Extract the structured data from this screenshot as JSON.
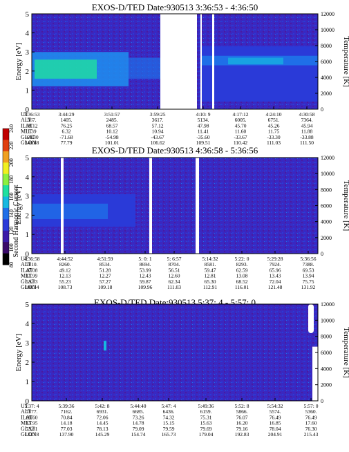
{
  "colorbar": {
    "label": "Second Harmonic Current",
    "ticks": [
      "80",
      "100",
      "120",
      "140",
      "160",
      "180",
      "200",
      "220",
      "240"
    ],
    "colors": [
      "#000000",
      "#3a0a6a",
      "#3b1aa8",
      "#2a3ad8",
      "#1f6fe8",
      "#16b8e0",
      "#20e0a0",
      "#8cf040",
      "#f0f020",
      "#f0a020",
      "#e04010",
      "#c00000"
    ]
  },
  "panels": [
    {
      "title": "EXOS-D/TED   Date:930513  3:36:53 - 4:36:50",
      "ylabel": "Energy [eV]",
      "y2label": "Temperature [K]",
      "yticks": [
        "0",
        "1",
        "2",
        "3",
        "4",
        "5"
      ],
      "y2ticks": [
        "0",
        "2000",
        "4000",
        "6000",
        "8000",
        "10000",
        "12000"
      ],
      "row_labels": [
        "UT",
        "ALT",
        "ILAT",
        "MLT",
        "GLAT",
        "GLON"
      ],
      "columns": [
        {
          "vals": [
            "3:36:53",
            "567.",
            "58.12",
            "1.39",
            "-69.30",
            "340.88"
          ]
        },
        {
          "vals": [
            "3:44:29",
            "1405.",
            "76.25",
            "6.32",
            "-71.68",
            "77.79"
          ]
        },
        {
          "vals": [
            "3:51:57",
            "2485.",
            "68.57",
            "10.12",
            "-54.98",
            "101.01"
          ]
        },
        {
          "vals": [
            "3:59:25",
            "3617.",
            "57.12",
            "10.94",
            "-43.67",
            "106.62"
          ]
        },
        {
          "vals": [
            "4:10: 9",
            "5134.",
            "47.98",
            "11.41",
            "-35.60",
            "109.51"
          ]
        },
        {
          "vals": [
            "4:17:12",
            "6005.",
            "45.70",
            "11.60",
            "-33.67",
            "110.42"
          ]
        },
        {
          "vals": [
            "4:24:10",
            "6751.",
            "45.26",
            "11.75",
            "-33.30",
            "111.03"
          ]
        },
        {
          "vals": [
            "4:30:58",
            "7364.",
            "45.94",
            "11.88",
            "-33.88",
            "111.50"
          ]
        }
      ]
    },
    {
      "title": "EXOS-D/TED   Date:930513  4:36:58 - 5:36:56",
      "ylabel": "Energy [eV]",
      "y2label": "Temperature [K]",
      "yticks": [
        "0",
        "1",
        "2",
        "3",
        "4",
        "5"
      ],
      "y2ticks": [
        "0",
        "2000",
        "4000",
        "6000",
        "8000",
        "10000",
        "12000"
      ],
      "row_labels": [
        "UT",
        "ALT",
        "ILAT",
        "MLT",
        "GLAT",
        "GLON"
      ],
      "columns": [
        {
          "vals": [
            "4:36:58",
            "7810.",
            "47.08",
            "11.99",
            "53.33",
            "108.34"
          ]
        },
        {
          "vals": [
            "4:44:52",
            "8260.",
            "49.12",
            "12.13",
            "55.23",
            "108.73"
          ]
        },
        {
          "vals": [
            "4:51:59",
            "8534.",
            "51.28",
            "12.27",
            "57.27",
            "109.18"
          ]
        },
        {
          "vals": [
            "5: 0: 1",
            "8694.",
            "53.99",
            "12.43",
            "59.87",
            "109.96"
          ]
        },
        {
          "vals": [
            "5: 6:57",
            "8704.",
            "56.51",
            "12.60",
            "62.34",
            "111.03"
          ]
        },
        {
          "vals": [
            "5:14:32",
            "8581.",
            "59.47",
            "12.81",
            "65.30",
            "112.91"
          ]
        },
        {
          "vals": [
            "5:22: 0",
            "8293.",
            "62.59",
            "13.08",
            "68.52",
            "116.01"
          ]
        },
        {
          "vals": [
            "5:29:28",
            "7924.",
            "65.96",
            "13.43",
            "72.04",
            "121.48"
          ]
        },
        {
          "vals": [
            "5:36:56",
            "7388.",
            "69.53",
            "13.94",
            "75.75",
            "131.92"
          ]
        }
      ]
    },
    {
      "title": "EXOS-D/TED   Date:930513  5:37: 4 - 5:57: 0",
      "ylabel": "Energy [eV]",
      "y2label": "Temperature [K]",
      "yticks": [
        "0",
        "1",
        "2",
        "3",
        "4",
        "5"
      ],
      "y2ticks": [
        "0",
        "2000",
        "4000",
        "6000",
        "8000",
        "10000",
        "12000"
      ],
      "row_labels": [
        "UT",
        "ALT",
        "ILAT",
        "MLT",
        "GLAT",
        "GLON"
      ],
      "columns": [
        {
          "vals": [
            "5:37: 4",
            "7377.",
            "69.60",
            "13.95",
            "75.81",
            "132.18"
          ]
        },
        {
          "vals": [
            "5:39:36",
            "7162.",
            "70.84",
            "14.18",
            "77.03",
            "137.90"
          ]
        },
        {
          "vals": [
            "5:42: 8",
            "6931.",
            "72.06",
            "14.45",
            "78.13",
            "145.29"
          ]
        },
        {
          "vals": [
            "5:44:40",
            "6685.",
            "73.26",
            "14.78",
            "79.09",
            "154.74"
          ]
        },
        {
          "vals": [
            "5:47: 4",
            "6436.",
            "74.32",
            "15.15",
            "79.59",
            "165.73"
          ]
        },
        {
          "vals": [
            "5:49:36",
            "6159.",
            "75.31",
            "15.63",
            "79.69",
            "179.04"
          ]
        },
        {
          "vals": [
            "5:52: 8",
            "5866.",
            "76.07",
            "16.20",
            "79.16",
            "192.83"
          ]
        },
        {
          "vals": [
            "5:54:32",
            "5574.",
            "76.49",
            "16.85",
            "78.04",
            "204.91"
          ]
        },
        {
          "vals": [
            "5:57: 0",
            "5360.",
            "76.49",
            "17.60",
            "76.30",
            "215.43"
          ]
        }
      ]
    }
  ],
  "chart_data": [
    {
      "type": "heatmap",
      "title": "EXOS-D/TED   Date:930513  3:36:53 - 4:36:50",
      "xlabel": "UT",
      "ylabel": "Energy [eV]",
      "y2label": "Temperature [K]",
      "ylim": [
        0,
        5
      ],
      "y2lim": [
        0,
        12000
      ],
      "x_ticks": [
        "3:36:53",
        "3:44:29",
        "3:51:57",
        "3:59:25",
        "4:10: 9",
        "4:17:12",
        "4:24:10",
        "4:30:58"
      ],
      "colorbar_label": "Second Harmonic Current",
      "colorbar_range": [
        80,
        240
      ],
      "data_gaps": [
        "~4:03 - ~4:09",
        "~4:11"
      ],
      "features": "intense emission band at ~1.5-3 eV early in the pass (3:36-3:50), diminishing later; band near 2 eV after 4:11"
    },
    {
      "type": "heatmap",
      "title": "EXOS-D/TED   Date:930513  4:36:58 - 5:36:56",
      "xlabel": "UT",
      "ylabel": "Energy [eV]",
      "y2label": "Temperature [K]",
      "ylim": [
        0,
        5
      ],
      "y2lim": [
        0,
        12000
      ],
      "x_ticks": [
        "4:36:58",
        "4:44:52",
        "4:51:59",
        "5: 0: 1",
        "5: 6:57",
        "5:14:32",
        "5:22: 0",
        "5:29:28",
        "5:36:56"
      ],
      "colorbar_label": "Second Harmonic Current",
      "colorbar_range": [
        80,
        240
      ],
      "data_gaps": [
        "~4:39",
        "~5:00",
        "~5:12"
      ],
      "features": "moderate band near 2-3 eV; weak background elsewhere"
    },
    {
      "type": "heatmap",
      "title": "EXOS-D/TED   Date:930513  5:37: 4 - 5:57: 0",
      "xlabel": "UT",
      "ylabel": "Energy [eV]",
      "y2label": "Temperature [K]",
      "ylim": [
        0,
        5
      ],
      "y2lim": [
        0,
        12000
      ],
      "x_ticks": [
        "5:37: 4",
        "5:39:36",
        "5:42: 8",
        "5:44:40",
        "5:47: 4",
        "5:49:36",
        "5:52: 8",
        "5:54:32",
        "5:57: 0"
      ],
      "colorbar_label": "Second Harmonic Current",
      "colorbar_range": [
        80,
        240
      ],
      "data_gaps": [
        "~5:56:30 - 5:57:00 (partial)"
      ],
      "features": "mostly uniform weak background; brief feature near 5:42 at ~3 eV"
    }
  ]
}
